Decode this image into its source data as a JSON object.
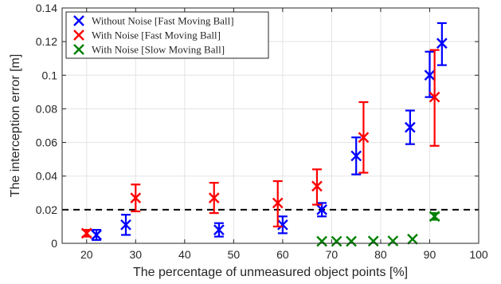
{
  "chart_data": {
    "type": "scatter",
    "xlabel": "The percentage of unmeasured object points  [%]",
    "ylabel": "The interception error [m]",
    "xlim": [
      15,
      100
    ],
    "ylim": [
      0,
      0.14
    ],
    "xticks": [
      20,
      30,
      40,
      50,
      60,
      70,
      80,
      90,
      100
    ],
    "yticks": [
      0,
      0.02,
      0.04,
      0.06,
      0.08,
      0.1,
      0.12,
      0.14
    ],
    "ytick_labels": [
      "0",
      "0.02",
      "0.04",
      "0.06",
      "0.08",
      "0.1",
      "0.12",
      "0.14"
    ],
    "grid": true,
    "legend_position": "top-left",
    "reference_line": {
      "y": 0.02,
      "style": "dashed",
      "color": "#000000"
    },
    "series": [
      {
        "name": "Without Noise [Fast Moving Ball]",
        "color": "#0000ff",
        "x": [
          22,
          28,
          47,
          60,
          68,
          75,
          86,
          90,
          92.5
        ],
        "y": [
          0.005,
          0.011,
          0.008,
          0.011,
          0.02,
          0.052,
          0.069,
          0.1,
          0.119
        ],
        "err_low": [
          0.003,
          0.006,
          0.004,
          0.005,
          0.004,
          0.011,
          0.01,
          0.013,
          0.013
        ],
        "err_high": [
          0.003,
          0.006,
          0.004,
          0.005,
          0.004,
          0.011,
          0.01,
          0.014,
          0.012
        ]
      },
      {
        "name": "With Noise [Fast Moving Ball]",
        "color": "#ff0000",
        "x": [
          20,
          30,
          46,
          59,
          67,
          76.5,
          91
        ],
        "y": [
          0.006,
          0.027,
          0.027,
          0.024,
          0.034,
          0.063,
          0.087
        ],
        "err_low": [
          0.002,
          0.008,
          0.009,
          0.014,
          0.011,
          0.021,
          0.029
        ],
        "err_high": [
          0.002,
          0.008,
          0.009,
          0.013,
          0.01,
          0.021,
          0.028
        ]
      },
      {
        "name": "With Noise [Slow Moving Ball]",
        "color": "#008000",
        "x": [
          68,
          71,
          74,
          78.5,
          82.5,
          86.5,
          91
        ],
        "y": [
          0.0012,
          0.0012,
          0.0012,
          0.0013,
          0.0014,
          0.0025,
          0.016
        ],
        "err_low": [
          0,
          0,
          0,
          0,
          0,
          0,
          0.002
        ],
        "err_high": [
          0,
          0,
          0,
          0,
          0,
          0,
          0.002
        ]
      }
    ]
  }
}
